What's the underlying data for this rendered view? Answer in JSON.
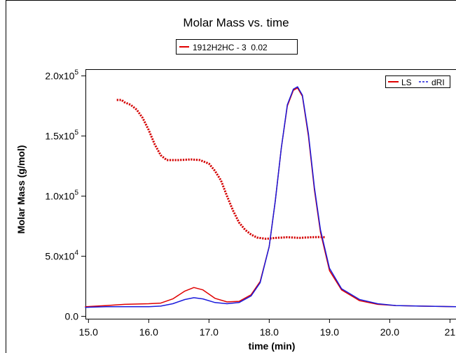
{
  "chart_data": {
    "type": "line",
    "title": "Molar Mass vs. time",
    "sample_box_label": "1912H2HC - 3  0.02",
    "xlabel": "time (min)",
    "ylabel": "Molar Mass (g/mol)",
    "xlim": [
      14.95,
      21.1
    ],
    "ylim": [
      -2000,
      205000
    ],
    "x_ticks": [
      15.0,
      16.0,
      17.0,
      18.0,
      19.0,
      20.0,
      21.0
    ],
    "x_tick_labels": [
      "15.0",
      "16.0",
      "17.0",
      "18.0",
      "19.0",
      "20.0",
      "21"
    ],
    "y_ticks": [
      0,
      50000,
      100000,
      150000,
      200000
    ],
    "y_tick_labels": [
      {
        "mantissa": "0.0",
        "exponent": ""
      },
      {
        "mantissa": "5.0x10",
        "exponent": "4"
      },
      {
        "mantissa": "1.0x10",
        "exponent": "5"
      },
      {
        "mantissa": "1.5x10",
        "exponent": "5"
      },
      {
        "mantissa": "2.0x10",
        "exponent": "5"
      }
    ],
    "legend": {
      "placement": "top-right",
      "entries": [
        {
          "name": "LS",
          "color": "#e00000"
        },
        {
          "name": "dRI",
          "color": "#1a1adc"
        }
      ]
    },
    "grid": false,
    "series": [
      {
        "name": "1912H2HC - 3  0.02",
        "style": "dotted",
        "color": "#d40000",
        "x": [
          15.47,
          15.55,
          15.6,
          15.7,
          15.8,
          15.9,
          16.0,
          16.1,
          16.2,
          16.3,
          16.5,
          16.7,
          16.85,
          17.0,
          17.1,
          17.2,
          17.3,
          17.4,
          17.5,
          17.6,
          17.7,
          17.8,
          17.95,
          18.1,
          18.3,
          18.5,
          18.7,
          18.85,
          18.92
        ],
        "y": [
          180000,
          180000,
          178000,
          176000,
          172000,
          165000,
          155000,
          143000,
          134000,
          130000,
          130000,
          130500,
          130000,
          127000,
          121000,
          113000,
          100000,
          88000,
          78000,
          72000,
          68000,
          65500,
          64500,
          65200,
          65800,
          65300,
          65800,
          66000,
          65800
        ]
      },
      {
        "name": "LS",
        "style": "solid",
        "color": "#e00000",
        "x": [
          14.95,
          15.3,
          15.6,
          16.0,
          16.2,
          16.4,
          16.6,
          16.75,
          16.9,
          17.1,
          17.3,
          17.5,
          17.7,
          17.85,
          18.0,
          18.1,
          18.2,
          18.3,
          18.4,
          18.47,
          18.55,
          18.65,
          18.75,
          18.85,
          19.0,
          19.2,
          19.5,
          19.8,
          20.1,
          20.5,
          21.1
        ],
        "y": [
          8000,
          9000,
          10000,
          10500,
          11000,
          14500,
          21000,
          24000,
          22000,
          15000,
          12000,
          12500,
          18000,
          29000,
          58000,
          96000,
          140000,
          175000,
          188000,
          190000,
          183000,
          150000,
          105000,
          70000,
          38000,
          22000,
          13000,
          10000,
          9000,
          8500,
          8000
        ]
      },
      {
        "name": "dRI",
        "style": "solid",
        "color": "#1a1adc",
        "x": [
          14.95,
          15.3,
          15.6,
          16.0,
          16.2,
          16.4,
          16.6,
          16.75,
          16.9,
          17.1,
          17.3,
          17.5,
          17.7,
          17.85,
          18.0,
          18.1,
          18.2,
          18.3,
          18.4,
          18.47,
          18.55,
          18.65,
          18.75,
          18.85,
          19.0,
          19.2,
          19.5,
          19.8,
          20.1,
          20.5,
          21.1
        ],
        "y": [
          7500,
          8000,
          8000,
          8000,
          8500,
          10500,
          14000,
          15500,
          14500,
          11500,
          10500,
          11500,
          17000,
          28000,
          58000,
          96000,
          140000,
          176000,
          189000,
          191000,
          184000,
          152000,
          107000,
          72000,
          40000,
          23000,
          14000,
          10500,
          9000,
          8500,
          8000
        ]
      }
    ]
  }
}
